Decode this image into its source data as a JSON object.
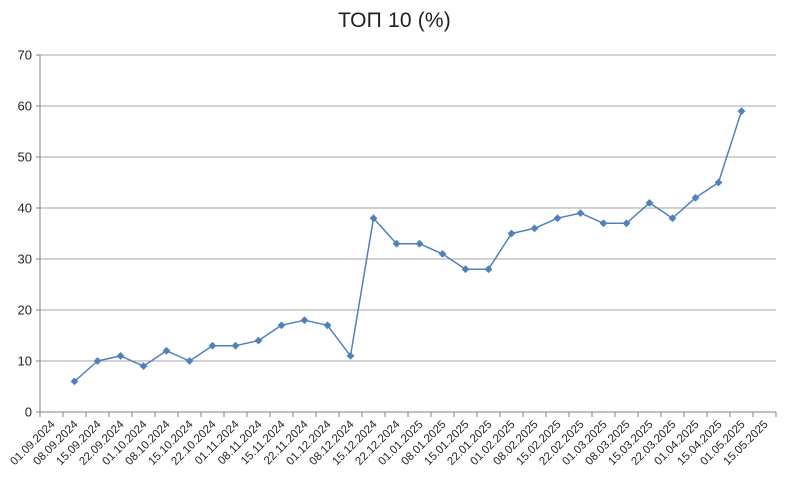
{
  "chart_data": {
    "type": "line",
    "title": "ТОП 10 (%)",
    "categories": [
      "01.09.2024",
      "08.09.2024",
      "15.09.2024",
      "22.09.2024",
      "01.10.2024",
      "08.10.2024",
      "15.10.2024",
      "22.10.2024",
      "01.11.2024",
      "08.11.2024",
      "15.11.2024",
      "22.11.2024",
      "01.12.2024",
      "08.12.2024",
      "15.12.2024",
      "22.12.2024",
      "01.01.2025",
      "08.01.2025",
      "15.01.2025",
      "22.01.2025",
      "01.02.2025",
      "08.02.2025",
      "15.02.2025",
      "22.02.2025",
      "01.03.2025",
      "08.03.2025",
      "15.03.2025",
      "22.03.2025",
      "01.04.2025",
      "15.04.2025",
      "01.05.2025",
      "15.05.2025"
    ],
    "series": [
      {
        "values": [
          null,
          6,
          10,
          11,
          9,
          12,
          10,
          13,
          13,
          14,
          17,
          18,
          17,
          11,
          38,
          33,
          33,
          31,
          28,
          28,
          35,
          36,
          38,
          39,
          37,
          37,
          41,
          38,
          42,
          45,
          59,
          null
        ]
      }
    ],
    "ylim": [
      0,
      70
    ],
    "yticks": [
      0,
      10,
      20,
      30,
      40,
      50,
      60,
      70
    ],
    "grid": "horizontal",
    "legend_position": "none",
    "marker": "diamond",
    "colors": {
      "series": "#4F81BD",
      "gridline": "#A6A6A6",
      "axis": "#808080",
      "text": "#262626",
      "background": "#FFFFFF"
    }
  }
}
